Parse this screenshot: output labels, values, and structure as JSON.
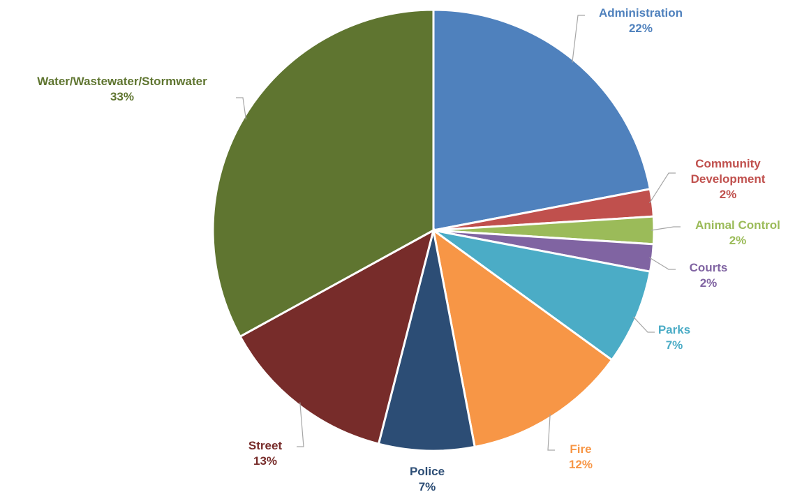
{
  "chart_data": {
    "type": "pie",
    "categories": [
      "Administration",
      "Community Development",
      "Animal Control",
      "Courts",
      "Parks",
      "Fire",
      "Police",
      "Street",
      "Water/Wastewater/Stormwater"
    ],
    "values": [
      22,
      2,
      2,
      2,
      7,
      12,
      7,
      13,
      33
    ],
    "value_labels": [
      "22%",
      "2%",
      "2%",
      "2%",
      "7%",
      "12%",
      "7%",
      "13%",
      "33%"
    ],
    "colors": [
      "#4f81bd",
      "#c0504d",
      "#9bbb59",
      "#8064a2",
      "#4bacc6",
      "#f79646",
      "#2c4d75",
      "#772c2a",
      "#5f7530"
    ]
  }
}
